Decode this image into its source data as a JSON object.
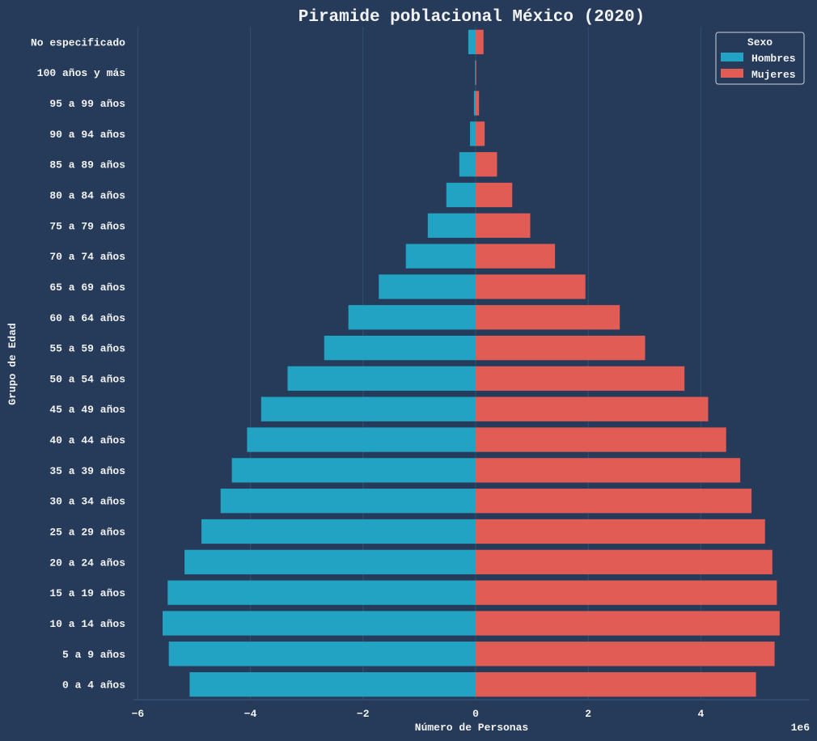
{
  "chart_data": {
    "type": "bar",
    "orientation": "horizontal",
    "title": "Piramide poblacional México (2020)",
    "xlabel": "Número de Personas",
    "ylabel": "Grupo de Edad",
    "x_offset_label": "1e6",
    "xlim": [
      -6.0,
      6.0
    ],
    "xticks": [
      "−6",
      "−4",
      "−2",
      "0",
      "2",
      "4"
    ],
    "xtick_values": [
      -6,
      -4,
      -2,
      0,
      2,
      4
    ],
    "legend": {
      "title": "Sexo",
      "position": "top-right"
    },
    "grid": "vertical",
    "categories": [
      "No especificado",
      "100 años y más",
      "95 a 99 años",
      "90 a 94 años",
      "85 a 89 años",
      "80 a 84 años",
      "75 a 79 años",
      "70 a 74 años",
      "65 a 69 años",
      "60 a 64 años",
      "55 a 59 años",
      "50 a 54 años",
      "45 a 49 años",
      "40 a 44 años",
      "35 a 39 años",
      "30 a 34 años",
      "25 a 29 años",
      "20 a 24 años",
      "15 a 19 años",
      "10 a 14 años",
      "5 a 9 años",
      "0 a 4 años"
    ],
    "series": [
      {
        "name": "Hombres",
        "color": "#22a3c3",
        "values": [
          -0.13,
          -0.01,
          -0.03,
          -0.1,
          -0.29,
          -0.52,
          -0.85,
          -1.24,
          -1.72,
          -2.26,
          -2.69,
          -3.34,
          -3.81,
          -4.06,
          -4.33,
          -4.53,
          -4.87,
          -5.17,
          -5.47,
          -5.56,
          -5.45,
          -5.08
        ]
      },
      {
        "name": "Mujeres",
        "color": "#e05c55",
        "values": [
          0.14,
          0.01,
          0.06,
          0.16,
          0.38,
          0.65,
          0.97,
          1.41,
          1.95,
          2.56,
          3.01,
          3.71,
          4.13,
          4.45,
          4.7,
          4.9,
          5.14,
          5.27,
          5.35,
          5.4,
          5.31,
          4.98
        ]
      }
    ]
  }
}
